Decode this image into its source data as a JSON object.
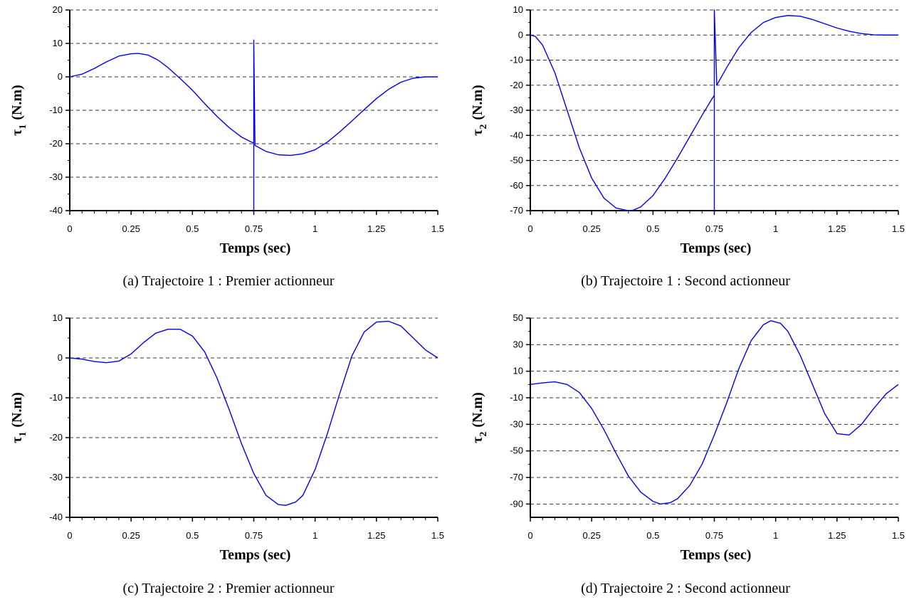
{
  "chart_data": [
    {
      "type": "line",
      "caption": "(a)  Trajectoire 1 : Premier actionneur",
      "xlabel": "Temps (sec)",
      "ylabel": "τ",
      "ylabel_sub": "1",
      "ylabel_unit": "(N.m)",
      "xlim": [
        0,
        1.5
      ],
      "ylim": [
        -40,
        20
      ],
      "xticks": [
        0,
        0.25,
        0.5,
        0.75,
        1,
        1.25,
        1.5
      ],
      "xtick_labels": [
        "0",
        "0.25",
        "0.5",
        "0.75",
        "1",
        "1.25",
        "1.5"
      ],
      "yticks": [
        -40,
        -30,
        -20,
        -10,
        0,
        10,
        20
      ],
      "ytick_labels": [
        "-40",
        "-30",
        "-20",
        "-10",
        "0",
        "10",
        "20"
      ],
      "grid": "horizontal dashed",
      "series": [
        {
          "color": "#0000ee",
          "x": [
            0,
            0.05,
            0.1,
            0.15,
            0.2,
            0.25,
            0.28,
            0.32,
            0.36,
            0.4,
            0.45,
            0.5,
            0.55,
            0.6,
            0.65,
            0.7,
            0.74,
            0.75,
            0.75,
            0.75,
            0.755,
            0.8,
            0.85,
            0.9,
            0.95,
            1.0,
            1.05,
            1.1,
            1.15,
            1.2,
            1.25,
            1.3,
            1.35,
            1.4,
            1.45,
            1.5
          ],
          "y": [
            0,
            0.8,
            2.5,
            4.5,
            6.2,
            6.9,
            7.0,
            6.5,
            5.0,
            2.8,
            -0.5,
            -4.0,
            -8.0,
            -11.8,
            -15.2,
            -18.0,
            -19.5,
            -19.8,
            -40,
            11,
            -20.5,
            -22.3,
            -23.3,
            -23.5,
            -23.0,
            -21.8,
            -19.5,
            -16.5,
            -13.2,
            -9.8,
            -6.5,
            -3.7,
            -1.6,
            -0.4,
            0,
            0
          ]
        }
      ]
    },
    {
      "type": "line",
      "caption": "(b)  Trajectoire 1 : Second actionneur",
      "xlabel": "Temps (sec)",
      "ylabel": "τ",
      "ylabel_sub": "2",
      "ylabel_unit": "(N.m)",
      "xlim": [
        0,
        1.5
      ],
      "ylim": [
        -70,
        10
      ],
      "xticks": [
        0,
        0.25,
        0.5,
        0.75,
        1,
        1.25,
        1.5
      ],
      "xtick_labels": [
        "0",
        "0.25",
        "0.5",
        "0.75",
        "1",
        "1.25",
        "1.5"
      ],
      "yticks": [
        -70,
        -60,
        -50,
        -40,
        -30,
        -20,
        -10,
        0,
        10
      ],
      "ytick_labels": [
        "-70",
        "-60",
        "-50",
        "-40",
        "-30",
        "-20",
        "-10",
        "0",
        "10"
      ],
      "grid": "horizontal dashed",
      "series": [
        {
          "color": "#0000ee",
          "x": [
            0,
            0.02,
            0.05,
            0.1,
            0.15,
            0.2,
            0.25,
            0.3,
            0.35,
            0.4,
            0.42,
            0.45,
            0.5,
            0.55,
            0.6,
            0.65,
            0.7,
            0.74,
            0.75,
            0.75,
            0.75,
            0.76,
            0.8,
            0.85,
            0.9,
            0.95,
            1.0,
            1.05,
            1.1,
            1.15,
            1.2,
            1.25,
            1.3,
            1.35,
            1.4,
            1.45,
            1.5
          ],
          "y": [
            0,
            -0.5,
            -4,
            -15,
            -30,
            -45,
            -57,
            -65,
            -69,
            -70,
            -69.8,
            -68.5,
            -64,
            -57,
            -49,
            -40.5,
            -32,
            -25.5,
            -24,
            -70,
            10,
            -20,
            -13,
            -5,
            1,
            5,
            7,
            7.8,
            7.5,
            6.2,
            4.5,
            2.8,
            1.5,
            0.6,
            0.1,
            0,
            0
          ]
        }
      ]
    },
    {
      "type": "line",
      "caption": "(c)  Trajectoire 2 : Premier actionneur",
      "xlabel": "Temps (sec)",
      "ylabel": "τ",
      "ylabel_sub": "1",
      "ylabel_unit": "(N.m)",
      "xlim": [
        0,
        1.5
      ],
      "ylim": [
        -40,
        10
      ],
      "xticks": [
        0,
        0.25,
        0.5,
        0.75,
        1,
        1.25,
        1.5
      ],
      "xtick_labels": [
        "0",
        "0.25",
        "0.5",
        "0.75",
        "1",
        "1.25",
        "1.5"
      ],
      "yticks": [
        -40,
        -30,
        -20,
        -10,
        0,
        10
      ],
      "ytick_labels": [
        "-40",
        "-30",
        "-20",
        "-10",
        "0",
        "10"
      ],
      "grid": "horizontal dashed",
      "series": [
        {
          "color": "#0000ee",
          "x": [
            0,
            0.05,
            0.1,
            0.15,
            0.2,
            0.25,
            0.3,
            0.35,
            0.4,
            0.45,
            0.5,
            0.55,
            0.6,
            0.65,
            0.7,
            0.75,
            0.8,
            0.85,
            0.88,
            0.92,
            0.95,
            1.0,
            1.05,
            1.1,
            1.15,
            1.2,
            1.25,
            1.3,
            1.35,
            1.4,
            1.45,
            1.5
          ],
          "y": [
            0,
            -0.3,
            -0.9,
            -1.2,
            -0.8,
            1.0,
            3.8,
            6.2,
            7.2,
            7.2,
            5.5,
            1.5,
            -5.0,
            -13.0,
            -21.5,
            -29.0,
            -34.5,
            -36.8,
            -37.0,
            -36.2,
            -34.5,
            -28.0,
            -19.0,
            -9.0,
            0.5,
            6.5,
            9.0,
            9.2,
            8.0,
            5.0,
            2.0,
            0
          ]
        }
      ]
    },
    {
      "type": "line",
      "caption": "(d)  Trajectoire 2 : Second actionneur",
      "xlabel": "Temps (sec)",
      "ylabel": "τ",
      "ylabel_sub": "2",
      "ylabel_unit": "(N.m)",
      "xlim": [
        0,
        1.5
      ],
      "ylim": [
        -100,
        50
      ],
      "xticks": [
        0,
        0.25,
        0.5,
        0.75,
        1,
        1.25,
        1.5
      ],
      "xtick_labels": [
        "0",
        "0.25",
        "0.5",
        "0.75",
        "1",
        "1.25",
        "1.5"
      ],
      "yticks": [
        -90,
        -70,
        -50,
        -30,
        -10,
        10,
        30,
        50
      ],
      "ytick_labels": [
        "-90",
        "-70",
        "-50",
        "-30",
        "-10",
        "10",
        "30",
        "50"
      ],
      "grid": "horizontal dashed",
      "series": [
        {
          "color": "#0000ee",
          "x": [
            0,
            0.05,
            0.1,
            0.15,
            0.2,
            0.25,
            0.3,
            0.35,
            0.4,
            0.45,
            0.5,
            0.53,
            0.57,
            0.6,
            0.65,
            0.7,
            0.75,
            0.8,
            0.85,
            0.9,
            0.95,
            0.98,
            1.02,
            1.05,
            1.1,
            1.15,
            1.2,
            1.25,
            1.3,
            1.35,
            1.4,
            1.45,
            1.5
          ],
          "y": [
            0,
            1.2,
            2.0,
            0,
            -6,
            -18,
            -34,
            -52,
            -69,
            -81,
            -88,
            -90,
            -89,
            -86,
            -76,
            -60,
            -38,
            -14,
            12,
            33,
            45,
            48,
            46,
            40,
            22,
            0,
            -22,
            -37,
            -38,
            -30,
            -18,
            -7,
            0
          ]
        }
      ]
    }
  ]
}
